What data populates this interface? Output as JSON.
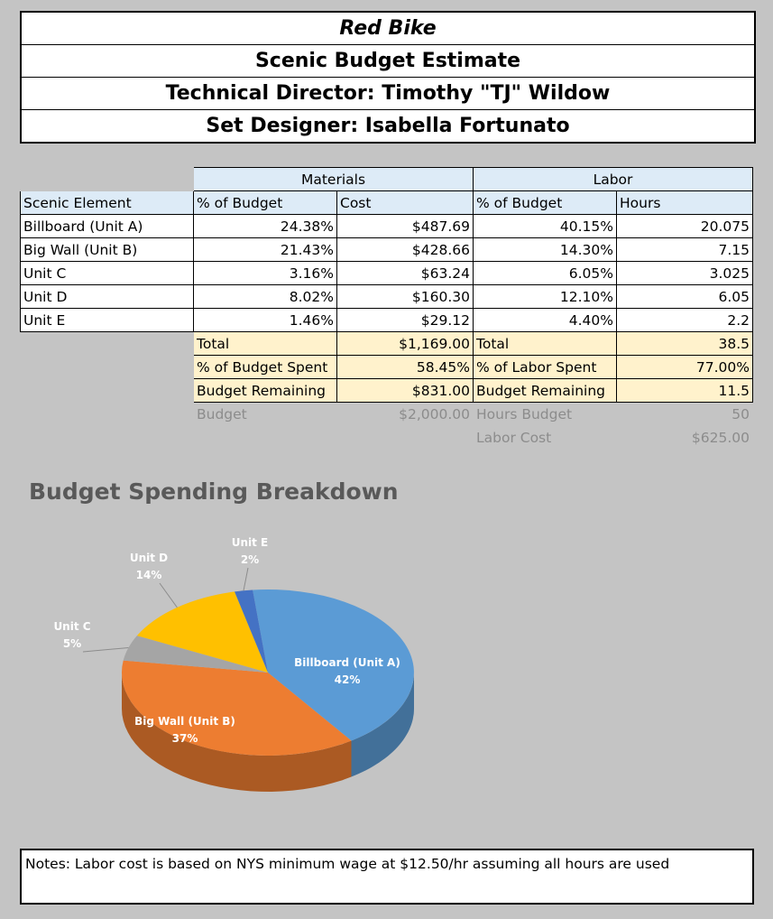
{
  "header": {
    "title": "Red Bike",
    "subtitle": "Scenic Budget Estimate",
    "technical_director": "Technical Director: Timothy \"TJ\" Wildow",
    "set_designer": "Set Designer: Isabella Fortunato"
  },
  "table": {
    "group_materials": "Materials",
    "group_labor": "Labor",
    "col_element": "Scenic Element",
    "col_mat_pct": "% of Budget",
    "col_cost": "Cost",
    "col_lab_pct": "% of Budget",
    "col_hours": "Hours",
    "rows": [
      {
        "name": "Billboard (Unit A)",
        "mat_pct": "24.38%",
        "cost": "$487.69",
        "lab_pct": "40.15%",
        "hours": "20.075"
      },
      {
        "name": "Big Wall (Unit B)",
        "mat_pct": "21.43%",
        "cost": "$428.66",
        "lab_pct": "14.30%",
        "hours": "7.15"
      },
      {
        "name": "Unit C",
        "mat_pct": "3.16%",
        "cost": "$63.24",
        "lab_pct": "6.05%",
        "hours": "3.025"
      },
      {
        "name": "Unit D",
        "mat_pct": "8.02%",
        "cost": "$160.30",
        "lab_pct": "12.10%",
        "hours": "6.05"
      },
      {
        "name": "Unit E",
        "mat_pct": "1.46%",
        "cost": "$29.12",
        "lab_pct": "4.40%",
        "hours": "2.2"
      }
    ],
    "summary": [
      {
        "mat_label": "Total",
        "mat_value": "$1,169.00",
        "lab_label": "Total",
        "lab_value": "38.5"
      },
      {
        "mat_label": "% of Budget Spent",
        "mat_value": "58.45%",
        "lab_label": "% of Labor Spent",
        "lab_value": "77.00%"
      },
      {
        "mat_label": "Budget Remaining",
        "mat_value": "$831.00",
        "lab_label": "Budget Remaining",
        "lab_value": "11.5"
      }
    ],
    "footer": [
      {
        "mat_label": "Budget",
        "mat_value": "$2,000.00",
        "lab_label": "Hours Budget",
        "lab_value": "50"
      },
      {
        "mat_label": "",
        "mat_value": "",
        "lab_label": "Labor Cost",
        "lab_value": "$625.00"
      }
    ]
  },
  "chart_data": {
    "type": "pie",
    "title": "Budget Spending Breakdown",
    "slices": [
      {
        "label": "Billboard (Unit A)",
        "value": 42,
        "display": "42%",
        "color": "#5b9bd5"
      },
      {
        "label": "Big Wall (Unit B)",
        "value": 37,
        "display": "37%",
        "color": "#ed7d31"
      },
      {
        "label": "Unit C",
        "value": 5,
        "display": "5%",
        "color": "#a5a5a5"
      },
      {
        "label": "Unit D",
        "value": 14,
        "display": "14%",
        "color": "#ffc000"
      },
      {
        "label": "Unit E",
        "value": 2,
        "display": "2%",
        "color": "#4472c4"
      }
    ],
    "three_d": true
  },
  "notes": "Notes: Labor cost is based on NYS minimum wage at $12.50/hr assuming all hours are used"
}
